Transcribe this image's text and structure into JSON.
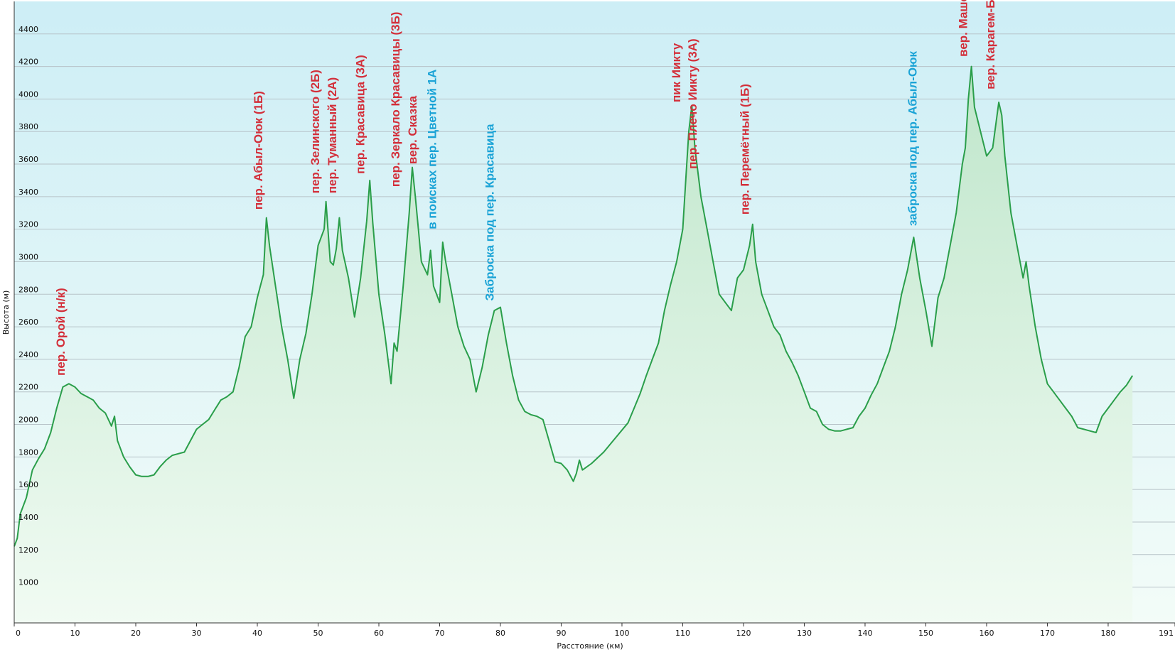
{
  "chart_data": {
    "type": "area",
    "title": "",
    "xlabel": "Расстояние (км)",
    "ylabel": "Высота (м)",
    "xlim": [
      0,
      191
    ],
    "ylim": [
      780,
      4600
    ],
    "x_ticks": [
      0,
      10,
      20,
      30,
      40,
      50,
      60,
      70,
      80,
      90,
      100,
      110,
      120,
      130,
      140,
      150,
      160,
      170,
      180,
      191
    ],
    "y_ticks": [
      1000,
      1200,
      1400,
      1600,
      1800,
      2000,
      2200,
      2400,
      2600,
      2800,
      3000,
      3200,
      3400,
      3600,
      3800,
      4000,
      4200,
      4400
    ],
    "grid": true,
    "legend": "none",
    "colors": {
      "line": "#2a9e4a",
      "fill_top": "#c8ebd3",
      "fill_bottom": "#f1fbf3",
      "bg_top": "#cdeef6",
      "bg_bottom": "#f3fcf8",
      "label_red": "#d32f3a",
      "label_blue": "#1aa3d6"
    },
    "series": [
      {
        "points": [
          [
            0,
            1250
          ],
          [
            0.5,
            1300
          ],
          [
            1,
            1450
          ],
          [
            2,
            1550
          ],
          [
            3,
            1720
          ],
          [
            4,
            1790
          ],
          [
            5,
            1850
          ],
          [
            6,
            1950
          ],
          [
            7,
            2100
          ],
          [
            8,
            2230
          ],
          [
            9,
            2250
          ],
          [
            10,
            2230
          ],
          [
            11,
            2190
          ],
          [
            12,
            2170
          ],
          [
            13,
            2150
          ],
          [
            14,
            2100
          ],
          [
            15,
            2070
          ],
          [
            16,
            1990
          ],
          [
            16.5,
            2050
          ],
          [
            17,
            1900
          ],
          [
            18,
            1800
          ],
          [
            19,
            1740
          ],
          [
            20,
            1690
          ],
          [
            21,
            1680
          ],
          [
            22,
            1680
          ],
          [
            23,
            1690
          ],
          [
            24,
            1740
          ],
          [
            25,
            1780
          ],
          [
            26,
            1810
          ],
          [
            27,
            1820
          ],
          [
            28,
            1830
          ],
          [
            29,
            1900
          ],
          [
            30,
            1970
          ],
          [
            31,
            2000
          ],
          [
            32,
            2030
          ],
          [
            33,
            2090
          ],
          [
            34,
            2150
          ],
          [
            35,
            2170
          ],
          [
            36,
            2200
          ],
          [
            37,
            2350
          ],
          [
            38,
            2540
          ],
          [
            39,
            2600
          ],
          [
            40,
            2780
          ],
          [
            41,
            2920
          ],
          [
            41.5,
            3270
          ],
          [
            42,
            3100
          ],
          [
            43,
            2850
          ],
          [
            44,
            2600
          ],
          [
            45,
            2400
          ],
          [
            46,
            2160
          ],
          [
            47,
            2400
          ],
          [
            48,
            2560
          ],
          [
            49,
            2800
          ],
          [
            50,
            3100
          ],
          [
            51,
            3200
          ],
          [
            51.3,
            3370
          ],
          [
            52,
            3000
          ],
          [
            52.5,
            2980
          ],
          [
            53,
            3080
          ],
          [
            53.5,
            3270
          ],
          [
            54,
            3070
          ],
          [
            55,
            2900
          ],
          [
            56,
            2660
          ],
          [
            57,
            2900
          ],
          [
            58,
            3250
          ],
          [
            58.5,
            3500
          ],
          [
            59,
            3240
          ],
          [
            60,
            2800
          ],
          [
            61,
            2550
          ],
          [
            62,
            2250
          ],
          [
            62.5,
            2500
          ],
          [
            63,
            2450
          ],
          [
            64,
            2850
          ],
          [
            65,
            3300
          ],
          [
            65.5,
            3580
          ],
          [
            66,
            3400
          ],
          [
            66.5,
            3200
          ],
          [
            67,
            3000
          ],
          [
            68,
            2920
          ],
          [
            68.5,
            3070
          ],
          [
            69,
            2850
          ],
          [
            70,
            2750
          ],
          [
            70.5,
            3120
          ],
          [
            71,
            3000
          ],
          [
            72,
            2800
          ],
          [
            73,
            2600
          ],
          [
            74,
            2480
          ],
          [
            75,
            2400
          ],
          [
            76,
            2200
          ],
          [
            77,
            2350
          ],
          [
            78,
            2550
          ],
          [
            79,
            2700
          ],
          [
            80,
            2720
          ],
          [
            81,
            2500
          ],
          [
            82,
            2300
          ],
          [
            83,
            2150
          ],
          [
            84,
            2080
          ],
          [
            85,
            2060
          ],
          [
            86,
            2050
          ],
          [
            87,
            2030
          ],
          [
            88,
            1900
          ],
          [
            89,
            1770
          ],
          [
            90,
            1760
          ],
          [
            91,
            1720
          ],
          [
            92,
            1650
          ],
          [
            92.5,
            1700
          ],
          [
            93,
            1780
          ],
          [
            93.5,
            1720
          ],
          [
            95,
            1760
          ],
          [
            97,
            1830
          ],
          [
            99,
            1920
          ],
          [
            101,
            2010
          ],
          [
            102,
            2100
          ],
          [
            103,
            2190
          ],
          [
            104,
            2300
          ],
          [
            105,
            2400
          ],
          [
            106,
            2500
          ],
          [
            107,
            2700
          ],
          [
            108,
            2860
          ],
          [
            109,
            3000
          ],
          [
            110,
            3200
          ],
          [
            110.5,
            3500
          ],
          [
            111,
            3800
          ],
          [
            111.5,
            3960
          ],
          [
            112,
            3700
          ],
          [
            113,
            3400
          ],
          [
            114,
            3200
          ],
          [
            115,
            3000
          ],
          [
            116,
            2800
          ],
          [
            117,
            2750
          ],
          [
            118,
            2700
          ],
          [
            119,
            2900
          ],
          [
            120,
            2950
          ],
          [
            121,
            3100
          ],
          [
            121.5,
            3230
          ],
          [
            122,
            3000
          ],
          [
            123,
            2800
          ],
          [
            124,
            2700
          ],
          [
            125,
            2600
          ],
          [
            126,
            2550
          ],
          [
            127,
            2450
          ],
          [
            128,
            2380
          ],
          [
            129,
            2300
          ],
          [
            130,
            2200
          ],
          [
            131,
            2100
          ],
          [
            132,
            2080
          ],
          [
            133,
            2000
          ],
          [
            134,
            1970
          ],
          [
            135,
            1960
          ],
          [
            136,
            1960
          ],
          [
            137,
            1970
          ],
          [
            138,
            1980
          ],
          [
            139,
            2050
          ],
          [
            140,
            2100
          ],
          [
            141,
            2180
          ],
          [
            142,
            2250
          ],
          [
            143,
            2350
          ],
          [
            144,
            2450
          ],
          [
            145,
            2600
          ],
          [
            146,
            2800
          ],
          [
            147,
            2950
          ],
          [
            148,
            3150
          ],
          [
            149,
            2900
          ],
          [
            150,
            2700
          ],
          [
            151,
            2480
          ],
          [
            152,
            2780
          ],
          [
            153,
            2900
          ],
          [
            154,
            3100
          ],
          [
            155,
            3300
          ],
          [
            156,
            3600
          ],
          [
            156.5,
            3700
          ],
          [
            157,
            4000
          ],
          [
            157.5,
            4200
          ],
          [
            158,
            3950
          ],
          [
            159,
            3800
          ],
          [
            160,
            3650
          ],
          [
            161,
            3700
          ],
          [
            162,
            3980
          ],
          [
            162.5,
            3900
          ],
          [
            163,
            3650
          ],
          [
            164,
            3300
          ],
          [
            165,
            3100
          ],
          [
            166,
            2900
          ],
          [
            166.5,
            3000
          ],
          [
            167,
            2850
          ],
          [
            168,
            2600
          ],
          [
            169,
            2400
          ],
          [
            170,
            2250
          ],
          [
            171,
            2200
          ],
          [
            172,
            2150
          ],
          [
            173,
            2100
          ],
          [
            174,
            2050
          ],
          [
            175,
            1980
          ],
          [
            176,
            1970
          ],
          [
            177,
            1960
          ],
          [
            178,
            1950
          ],
          [
            179,
            2050
          ],
          [
            180,
            2100
          ],
          [
            181,
            2150
          ],
          [
            182,
            2200
          ],
          [
            183,
            2240
          ],
          [
            184,
            2300
          ]
        ]
      }
    ],
    "annotations": [
      {
        "text": "пер. Орой (н/к)",
        "x": 8.3,
        "y": 2300,
        "color": "red"
      },
      {
        "text": "пер. Абыл-Оюк (1Б)",
        "x": 40.8,
        "y": 3320,
        "color": "red"
      },
      {
        "text": "пер. Зелинского (2Б)",
        "x": 50.2,
        "y": 3420,
        "color": "red"
      },
      {
        "text": "пер. Туманный (2А)",
        "x": 53.0,
        "y": 3420,
        "color": "red"
      },
      {
        "text": "пер. Красавица (3А)",
        "x": 57.6,
        "y": 3540,
        "color": "red"
      },
      {
        "text": "пер. Зеркало Красавицы (3Б)",
        "x": 63.4,
        "y": 3460,
        "color": "red"
      },
      {
        "text": "вер. Сказка",
        "x": 66.2,
        "y": 3600,
        "color": "red"
      },
      {
        "text": "в поисках пер. Цветной 1А",
        "x": 69.4,
        "y": 3200,
        "color": "blue"
      },
      {
        "text": "Заброска под пер. Красавица",
        "x": 78.9,
        "y": 2760,
        "color": "blue"
      },
      {
        "text": "пик Иикту",
        "x": 109.6,
        "y": 3980,
        "color": "red"
      },
      {
        "text": "пер. Плечо Иикту (3А)",
        "x": 112.3,
        "y": 3570,
        "color": "red"
      },
      {
        "text": "пер. Перемётный (1Б)",
        "x": 120.9,
        "y": 3290,
        "color": "red"
      },
      {
        "text": "заброска под пер. Абыл-Оюк",
        "x": 148.5,
        "y": 3220,
        "color": "blue"
      },
      {
        "text": "вер. Машей-Баши",
        "x": 156.8,
        "y": 4260,
        "color": "red"
      },
      {
        "text": "вер. Карагем-Баши",
        "x": 161.3,
        "y": 4060,
        "color": "red"
      }
    ]
  }
}
